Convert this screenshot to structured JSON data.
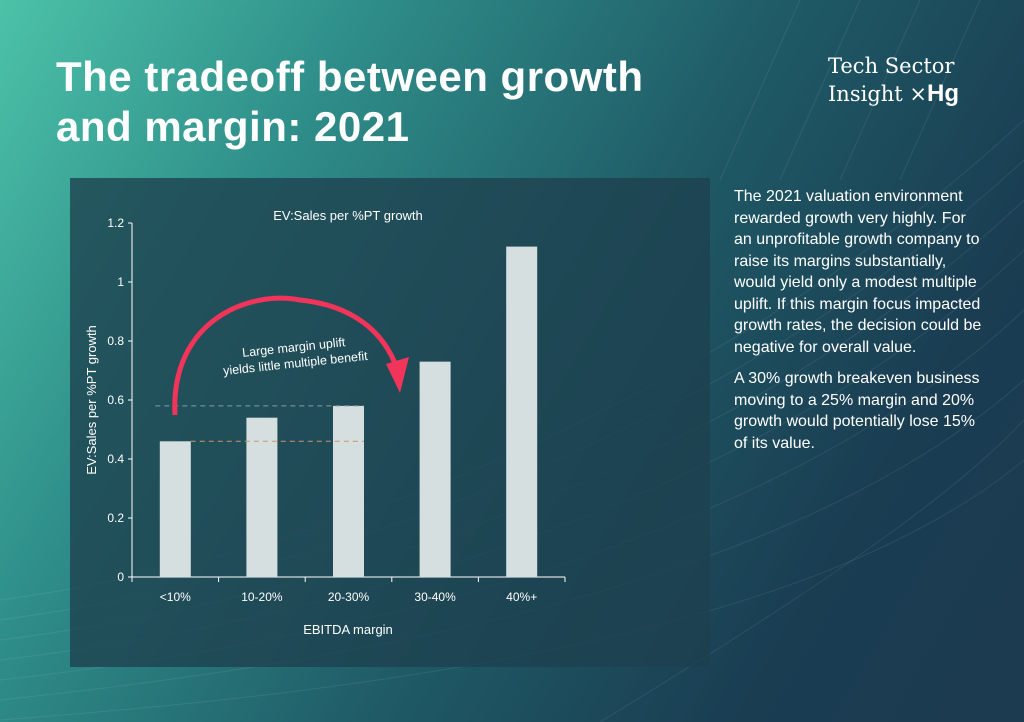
{
  "header": {
    "title_line1": "The tradeoff between growth",
    "title_line2": "and margin: 2021"
  },
  "logo": {
    "line1": "Tech  Sector",
    "line2": "Insight",
    "mark": "×",
    "brand": "Hg"
  },
  "body": {
    "paragraphs": [
      "The 2021 valuation environment rewarded growth very highly. For an unprofitable growth company to raise its margins substantially, would yield only a modest multiple uplift. If this margin focus impacted growth rates, the decision could be negative for overall value.",
      "A 30% growth breakeven business moving to a 25% margin and 20% growth would potentially lose 15% of its value."
    ]
  },
  "colors": {
    "bar": "#d6dfe0",
    "arrow": "#f0345a",
    "ref_upper": "#8a9aa0",
    "ref_lower": "#c9956a"
  },
  "chart_data": {
    "type": "bar",
    "title": "EV:Sales per %PT growth",
    "xlabel": "EBITDA margin",
    "ylabel": "EV:Sales per %PT growth",
    "categories": [
      "<10%",
      "10-20%",
      "20-30%",
      "30-40%",
      "40%+"
    ],
    "values": [
      0.46,
      0.54,
      0.58,
      0.73,
      1.12
    ],
    "ylim": [
      0,
      1.2
    ],
    "yticks": [
      "0",
      "0.2",
      "0.4",
      "0.6",
      "0.8",
      "1",
      "1.2"
    ],
    "grid": false,
    "annotation": {
      "line1": "Large margin uplift",
      "line2": "yields little multiple benefit",
      "from": "<10%",
      "to": "20-30%"
    },
    "reference_lines": [
      0.58,
      0.46
    ]
  }
}
